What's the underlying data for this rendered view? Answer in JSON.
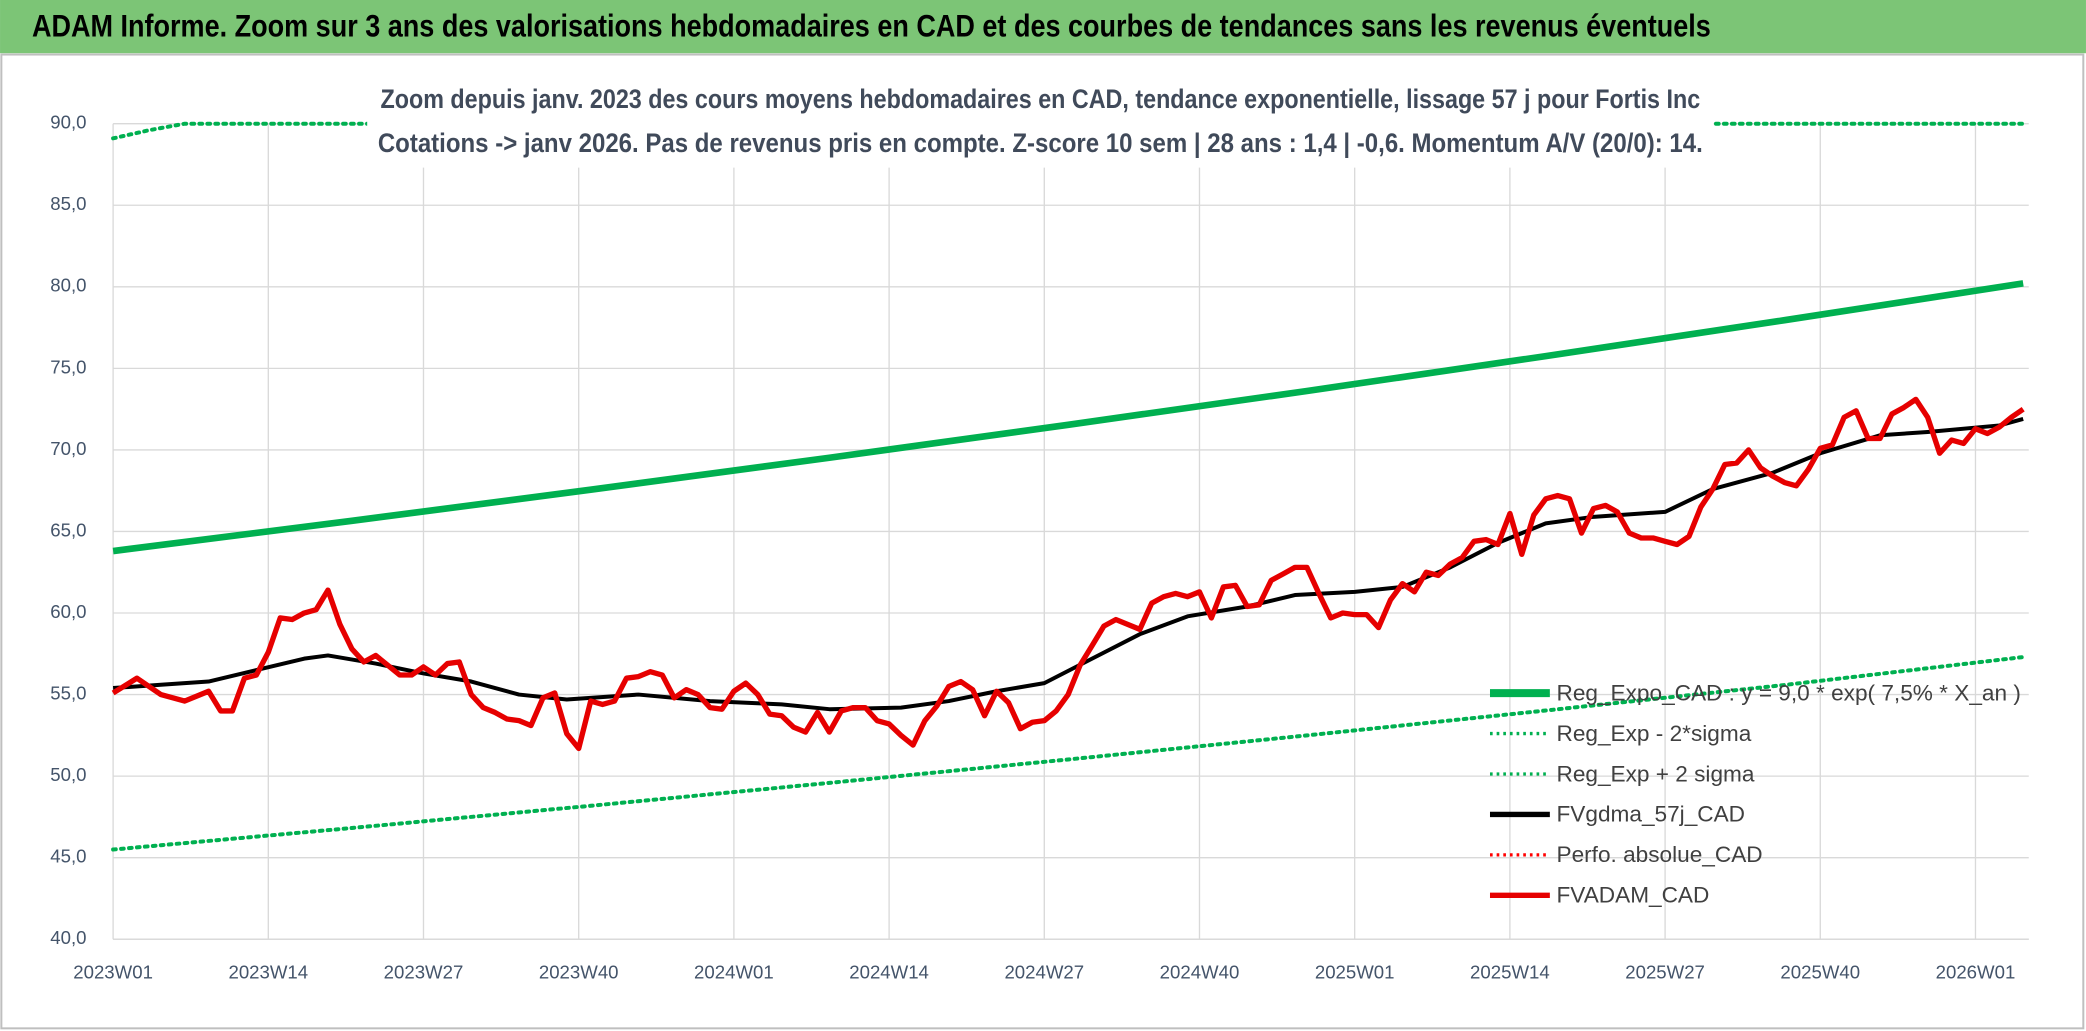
{
  "header": {
    "title": "ADAM Informe. Zoom sur 3 ans des valorisations hebdomadaires en CAD et des courbes de tendances sans les revenus éventuels"
  },
  "chart_data": {
    "type": "line",
    "title": "Zoom depuis janv. 2023 des cours moyens hebdomadaires en CAD, tendance exponentielle, lissage 57 j pour Fortis Inc",
    "subtitle": "Cotations -> janv 2026. Pas de revenus pris en compte. Z-score 10 sem | 28 ans : 1,4 | -0,6. Momentum A/V (20/0): 14.",
    "xlim": [
      0,
      161
    ],
    "xticks": [
      {
        "value": 0,
        "label": "2023W01"
      },
      {
        "value": 13,
        "label": "2023W14"
      },
      {
        "value": 26,
        "label": "2023W27"
      },
      {
        "value": 39,
        "label": "2023W40"
      },
      {
        "value": 52,
        "label": "2024W01"
      },
      {
        "value": 65,
        "label": "2024W14"
      },
      {
        "value": 78,
        "label": "2024W27"
      },
      {
        "value": 91,
        "label": "2024W40"
      },
      {
        "value": 104,
        "label": "2025W01"
      },
      {
        "value": 117,
        "label": "2025W14"
      },
      {
        "value": 130,
        "label": "2025W27"
      },
      {
        "value": 143,
        "label": "2025W40"
      },
      {
        "value": 156,
        "label": "2026W01"
      }
    ],
    "ylim": [
      40,
      90
    ],
    "yticks": [
      {
        "value": 40,
        "label": "40,0"
      },
      {
        "value": 45,
        "label": "45,0"
      },
      {
        "value": 50,
        "label": "50,0"
      },
      {
        "value": 55,
        "label": "55,0"
      },
      {
        "value": 60,
        "label": "60,0"
      },
      {
        "value": 65,
        "label": "65,0"
      },
      {
        "value": 70,
        "label": "70,0"
      },
      {
        "value": 75,
        "label": "75,0"
      },
      {
        "value": 80,
        "label": "80,0"
      },
      {
        "value": 85,
        "label": "85,0"
      },
      {
        "value": 90,
        "label": "90,0"
      }
    ],
    "grid": true,
    "legend": "lower right",
    "series": [
      {
        "name": "Reg_Expo_CAD : y = 9,0 * exp( 7,5% *  X_an )",
        "color": "#00b050",
        "line_style": "solid",
        "x": [
          0,
          20,
          40,
          60,
          80,
          100,
          120,
          140,
          160
        ],
        "values": [
          63.8,
          65.65,
          67.56,
          69.52,
          71.54,
          73.61,
          75.75,
          77.95,
          80.21
        ]
      },
      {
        "name": "Reg_Exp - 2*sigma",
        "color": "#00b050",
        "line_style": "dotted",
        "x": [
          0,
          20,
          40,
          60,
          80,
          100,
          120,
          140,
          160
        ],
        "values": [
          45.5,
          46.82,
          48.18,
          49.58,
          51.02,
          52.5,
          54.02,
          55.59,
          57.3
        ]
      },
      {
        "name": "Reg_Exp + 2 sigma",
        "color": "#00b050",
        "line_style": "dotted",
        "x": [
          0,
          3,
          6,
          40,
          80,
          120,
          160
        ],
        "values": [
          89.1,
          89.6,
          90,
          90,
          90,
          90,
          90
        ]
      },
      {
        "name": "FVgdma_57j_CAD",
        "color": "#000000",
        "line_style": "solid",
        "x": [
          0,
          4,
          8,
          12,
          16,
          18,
          22,
          26,
          30,
          34,
          38,
          44,
          50,
          56,
          60,
          66,
          70,
          74,
          78,
          82,
          86,
          90,
          95,
          99,
          104,
          108,
          112,
          116,
          120,
          124,
          130,
          134,
          139,
          143,
          148,
          152,
          158,
          160
        ],
        "values": [
          55.4,
          55.6,
          55.8,
          56.5,
          57.2,
          57.4,
          56.9,
          56.3,
          55.8,
          55.0,
          54.7,
          55.0,
          54.6,
          54.4,
          54.1,
          54.2,
          54.6,
          55.2,
          55.7,
          57.2,
          58.7,
          59.8,
          60.4,
          61.1,
          61.3,
          61.6,
          62.8,
          64.3,
          65.5,
          65.9,
          66.2,
          67.6,
          68.6,
          69.8,
          70.9,
          71.1,
          71.5,
          71.9
        ]
      },
      {
        "name": "Perfo. absolue_CAD",
        "color": "#ff0000",
        "line_style": "dotted",
        "x": [],
        "values": []
      },
      {
        "name": "FVADAM_CAD",
        "color": "#e60000",
        "line_style": "solid",
        "x": [
          0,
          2,
          4,
          6,
          8,
          9,
          10,
          11,
          12,
          13,
          14,
          15,
          16,
          17,
          18,
          19,
          20,
          21,
          22,
          23,
          24,
          25,
          26,
          27,
          28,
          29,
          30,
          31,
          32,
          33,
          34,
          35,
          36,
          37,
          38,
          39,
          40,
          41,
          42,
          43,
          44,
          45,
          46,
          47,
          48,
          49,
          50,
          51,
          52,
          53,
          54,
          55,
          56,
          57,
          58,
          59,
          60,
          61,
          62,
          63,
          64,
          65,
          66,
          67,
          68,
          69,
          70,
          71,
          72,
          73,
          74,
          75,
          76,
          77,
          78,
          79,
          80,
          81,
          82,
          83,
          84,
          86,
          87,
          88,
          89,
          90,
          91,
          92,
          93,
          94,
          95,
          96,
          97,
          98,
          99,
          100,
          101,
          102,
          103,
          104,
          105,
          106,
          107,
          108,
          109,
          110,
          111,
          112,
          113,
          114,
          115,
          116,
          117,
          118,
          119,
          120,
          121,
          122,
          123,
          124,
          125,
          126,
          127,
          128,
          129,
          130,
          131,
          132,
          133,
          134,
          135,
          136,
          137,
          138,
          139,
          140,
          141,
          142,
          143,
          144,
          145,
          146,
          147,
          148,
          149,
          150,
          151,
          152,
          153,
          154,
          155,
          156,
          157,
          158,
          159,
          160
        ],
        "values": [
          55.1,
          56.0,
          55.0,
          54.6,
          55.2,
          54.0,
          54.0,
          56.0,
          56.2,
          57.6,
          59.7,
          59.6,
          60.0,
          60.2,
          61.4,
          59.3,
          57.8,
          57.0,
          57.4,
          56.8,
          56.2,
          56.2,
          56.7,
          56.2,
          56.9,
          57.0,
          55.0,
          54.2,
          53.9,
          53.5,
          53.4,
          53.1,
          54.8,
          55.1,
          52.6,
          51.7,
          54.6,
          54.4,
          54.6,
          56.0,
          56.1,
          56.4,
          56.2,
          54.8,
          55.3,
          55.0,
          54.2,
          54.1,
          55.2,
          55.7,
          55.0,
          53.8,
          53.7,
          53.0,
          52.7,
          53.9,
          52.7,
          54.0,
          54.2,
          54.2,
          53.4,
          53.2,
          52.5,
          51.9,
          53.4,
          54.3,
          55.5,
          55.8,
          55.3,
          53.7,
          55.2,
          54.5,
          52.9,
          53.3,
          53.4,
          54.0,
          55.0,
          56.8,
          58.0,
          59.2,
          59.6,
          59.0,
          60.6,
          61.0,
          61.2,
          61.0,
          61.3,
          59.7,
          61.6,
          61.7,
          60.4,
          60.5,
          62.0,
          62.4,
          62.8,
          62.8,
          61.2,
          59.7,
          60.0,
          59.9,
          59.9,
          59.1,
          60.8,
          61.8,
          61.3,
          62.5,
          62.3,
          63.0,
          63.4,
          64.4,
          64.5,
          64.2,
          66.1,
          63.6,
          66.0,
          67.0,
          67.2,
          67.0,
          64.9,
          66.4,
          66.6,
          66.2,
          64.9,
          64.6,
          64.6,
          64.4,
          64.2,
          64.7,
          66.5,
          67.6,
          69.1,
          69.2,
          70.0,
          68.9,
          68.4,
          68.0,
          67.8,
          68.8,
          70.1,
          70.3,
          72.0,
          72.4,
          70.7,
          70.7,
          72.2,
          72.6,
          73.1,
          72.0,
          69.8,
          70.6,
          70.4,
          71.3,
          71.0,
          71.4,
          72.0,
          72.5
        ]
      }
    ]
  }
}
